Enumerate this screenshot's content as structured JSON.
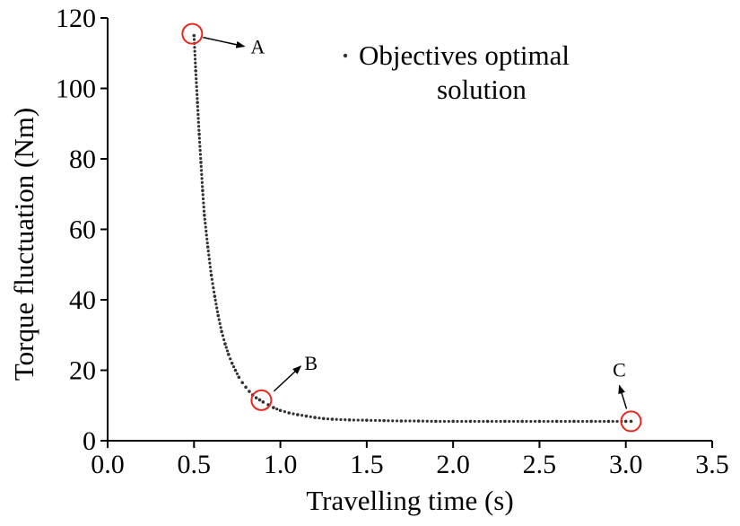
{
  "chart_data": {
    "type": "scatter",
    "xlabel": "Travelling time (s)",
    "ylabel": "Torque fluctuation (Nm)",
    "xlim": [
      0.0,
      3.5
    ],
    "ylim": [
      0,
      120
    ],
    "xticks": [
      "0.0",
      "0.5",
      "1.0",
      "1.5",
      "2.0",
      "2.5",
      "3.0",
      "3.5"
    ],
    "yticks": [
      "0",
      "20",
      "40",
      "60",
      "80",
      "100",
      "120"
    ],
    "grid": false,
    "legend": {
      "position": "top-right",
      "line1": "Objectives optimal",
      "line2": "solution"
    },
    "series": [
      {
        "name": "Objectives optimal solution",
        "color": "#333333",
        "x": [
          0.5,
          0.51,
          0.52,
          0.53,
          0.54,
          0.55,
          0.56,
          0.58,
          0.6,
          0.62,
          0.64,
          0.66,
          0.68,
          0.7,
          0.72,
          0.74,
          0.76,
          0.78,
          0.8,
          0.82,
          0.84,
          0.86,
          0.88,
          0.9,
          0.93,
          0.96,
          1.0,
          1.05,
          1.1,
          1.15,
          1.2,
          1.25,
          1.3,
          1.4,
          1.5,
          1.6,
          1.7,
          1.8,
          1.9,
          2.0,
          2.1,
          2.2,
          2.3,
          2.4,
          2.5,
          2.6,
          2.7,
          2.8,
          2.9,
          3.0,
          3.03
        ],
        "y": [
          115,
          105,
          96,
          87,
          79,
          71,
          64,
          55,
          47,
          41,
          35.5,
          31,
          27.5,
          24.5,
          22,
          20,
          18,
          16.5,
          15.2,
          14,
          13,
          12.2,
          11.6,
          11,
          10.2,
          9.4,
          8.6,
          7.9,
          7.4,
          7.0,
          6.6,
          6.3,
          6.1,
          5.9,
          5.8,
          5.7,
          5.6,
          5.6,
          5.5,
          5.5,
          5.5,
          5.5,
          5.5,
          5.5,
          5.5,
          5.5,
          5.5,
          5.5,
          5.5,
          5.5,
          5.5
        ]
      }
    ],
    "annotations": [
      {
        "label": "A",
        "x": 0.49,
        "y": 115.5
      },
      {
        "label": "B",
        "x": 0.89,
        "y": 11.5
      },
      {
        "label": "C",
        "x": 3.03,
        "y": 5.5
      }
    ],
    "highlight_color": "#e8281e"
  }
}
